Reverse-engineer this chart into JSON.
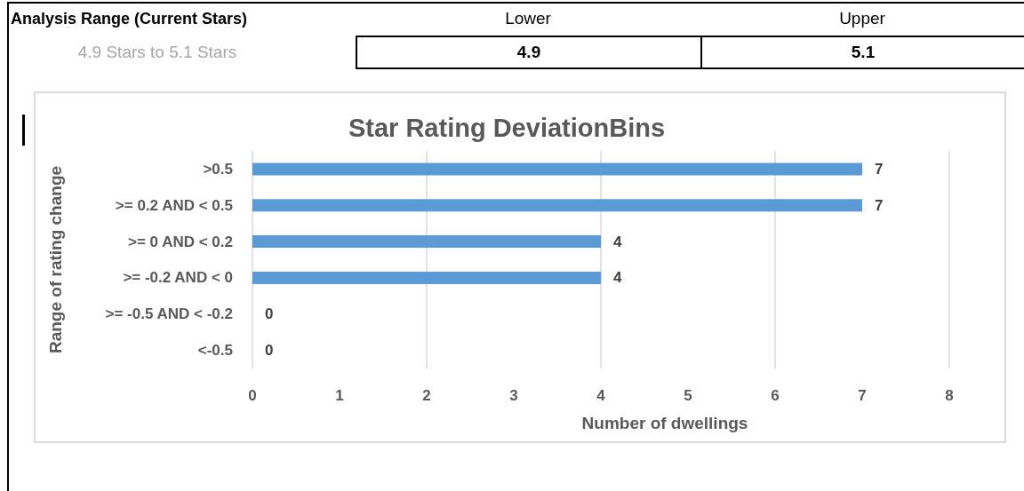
{
  "chart_data": {
    "type": "bar",
    "orientation": "horizontal",
    "title": "Star Rating DeviationBins",
    "xlabel": "Number of dwellings",
    "ylabel": "Range of rating change",
    "categories": [
      ">0.5",
      ">= 0.2 AND < 0.5",
      ">= 0 AND < 0.2",
      ">= -0.2 AND < 0",
      ">= -0.5 AND < -0.2",
      "<-0.5"
    ],
    "values": [
      7,
      7,
      4,
      4,
      0,
      0
    ],
    "color": "#5b9bd5",
    "xlim": [
      0,
      8
    ],
    "xticks": [
      0,
      1,
      2,
      3,
      4,
      5,
      6,
      7,
      8
    ],
    "grid": "x",
    "data_labels": true,
    "annotations": [
      "Analysis Range (Current Stars)",
      "Lower",
      "Upper",
      "4.9 Stars to 5.1 Stars",
      "4.9",
      "5.1"
    ]
  }
}
